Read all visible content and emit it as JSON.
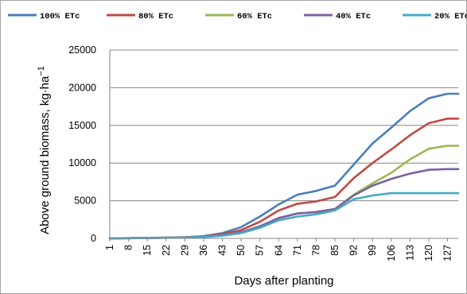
{
  "chart_data": {
    "type": "line",
    "xlabel": "Days after planting",
    "ylabel": "Above ground biomass, kg·ha⁻¹",
    "ylabel_main": "Above ground biomass, kg·ha",
    "ylabel_sup": "−1",
    "xlim": [
      1,
      131
    ],
    "ylim": [
      0,
      25000
    ],
    "yticks": [
      0,
      5000,
      10000,
      15000,
      20000,
      25000
    ],
    "ytick_labels": [
      "0",
      "5000",
      "10000",
      "15000",
      "20000",
      "25000"
    ],
    "xticks": [
      1,
      8,
      15,
      22,
      29,
      36,
      43,
      50,
      57,
      64,
      71,
      78,
      85,
      92,
      99,
      106,
      113,
      120,
      127
    ],
    "xtick_labels": [
      "1",
      "8",
      "15",
      "22",
      "29",
      "36",
      "43",
      "50",
      "57",
      "64",
      "71",
      "78",
      "85",
      "92",
      "99",
      "106",
      "113",
      "120",
      "127"
    ],
    "grid": "horizontal",
    "legend_position": "top",
    "x": [
      1,
      8,
      15,
      22,
      29,
      36,
      43,
      50,
      57,
      64,
      71,
      78,
      85,
      92,
      99,
      106,
      113,
      120,
      127,
      131
    ],
    "series": [
      {
        "name": "100% ETc",
        "color": "#4a7ebb",
        "values": [
          0,
          30,
          60,
          100,
          150,
          300,
          700,
          1500,
          2900,
          4500,
          5800,
          6300,
          7000,
          9800,
          12600,
          14700,
          16900,
          18600,
          19200,
          19200
        ]
      },
      {
        "name": "80% ETc",
        "color": "#be4b48",
        "values": [
          0,
          30,
          60,
          100,
          150,
          250,
          550,
          1100,
          2200,
          3700,
          4600,
          4900,
          5500,
          8000,
          10000,
          11800,
          13700,
          15300,
          15900,
          15900
        ]
      },
      {
        "name": "60% ETc",
        "color": "#98b954",
        "values": [
          0,
          20,
          50,
          80,
          120,
          200,
          400,
          800,
          1600,
          2700,
          3300,
          3500,
          3900,
          5800,
          7300,
          8700,
          10500,
          11900,
          12300,
          12300
        ]
      },
      {
        "name": "40% ETc",
        "color": "#7d60a0",
        "values": [
          0,
          20,
          50,
          80,
          120,
          200,
          400,
          800,
          1600,
          2700,
          3300,
          3500,
          3900,
          5700,
          7000,
          7900,
          8600,
          9100,
          9200,
          9200
        ]
      },
      {
        "name": "20% ETc",
        "color": "#46aac5",
        "values": [
          0,
          20,
          40,
          70,
          100,
          180,
          350,
          700,
          1400,
          2400,
          2900,
          3200,
          3700,
          5200,
          5700,
          6000,
          6000,
          6000,
          6000,
          6000
        ]
      }
    ]
  }
}
